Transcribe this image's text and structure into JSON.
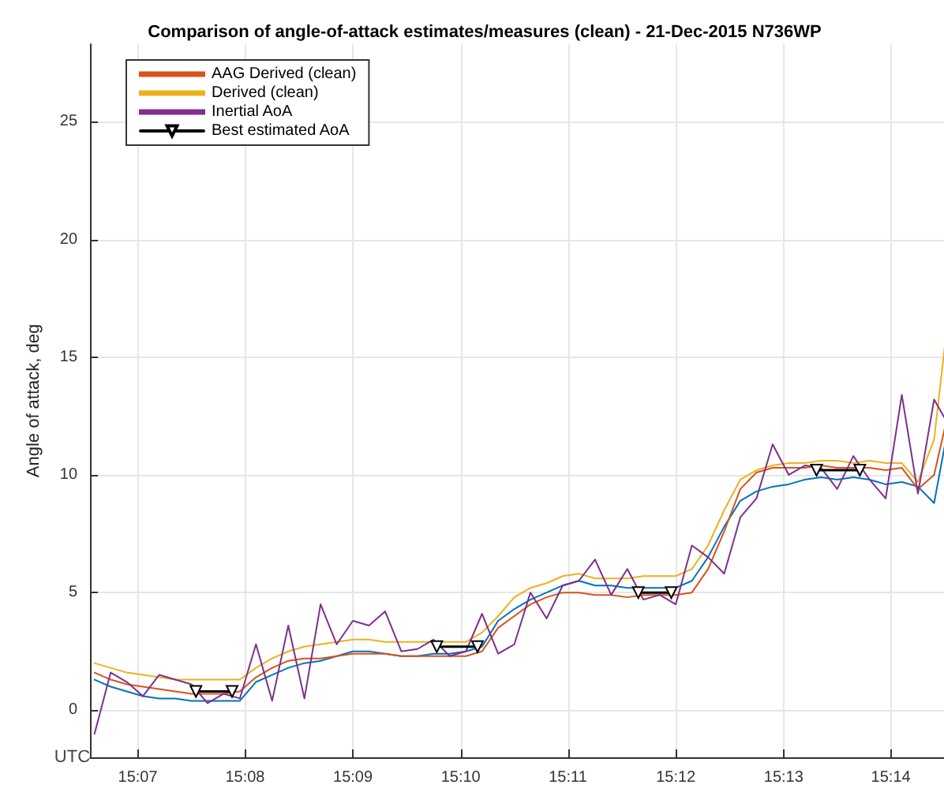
{
  "chart_data": {
    "type": "line",
    "title": "Comparison of angle-of-attack estimates/measures (clean) - 21-Dec-2015 N736WP",
    "xlabel": "UTC",
    "ylabel": "Angle of attack, deg",
    "x": [
      15.11,
      15.1125,
      15.115,
      15.1175,
      15.12,
      15.1225,
      15.125,
      15.1275,
      15.13,
      15.1325,
      15.135,
      15.1375,
      15.14,
      15.1425,
      15.145,
      15.1475,
      15.15,
      15.1525,
      15.155,
      15.1575,
      15.16,
      15.1625,
      15.165,
      15.1675,
      15.17,
      15.1725,
      15.175,
      15.1775,
      15.18,
      15.1825,
      15.185,
      15.1875,
      15.19,
      15.1925,
      15.195,
      15.1975,
      15.2,
      15.2025,
      15.205,
      15.2075,
      15.21,
      15.2125,
      15.215,
      15.2175,
      15.22,
      15.2225,
      15.225,
      15.2275,
      15.23,
      15.2325,
      15.235,
      15.2375,
      15.24,
      15.2425
    ],
    "series": [
      {
        "color": "#0072bd",
        "values": [
          1.3,
          1.0,
          0.8,
          0.6,
          0.5,
          0.5,
          0.4,
          0.4,
          0.4,
          0.4,
          1.2,
          1.5,
          1.8,
          2.0,
          2.1,
          2.3,
          2.5,
          2.5,
          2.4,
          2.3,
          2.3,
          2.4,
          2.4,
          2.5,
          2.7,
          3.8,
          4.3,
          4.7,
          5.0,
          5.3,
          5.5,
          5.3,
          5.3,
          5.2,
          5.2,
          5.2,
          5.2,
          5.5,
          6.5,
          7.8,
          8.9,
          9.3,
          9.5,
          9.6,
          9.8,
          9.9,
          9.8,
          9.9,
          9.8,
          9.6,
          9.7,
          9.5,
          8.8,
          12.5
        ]
      },
      {
        "name": "AAG Derived (clean)",
        "color": "#d95319",
        "values": [
          1.6,
          1.3,
          1.1,
          1.0,
          0.9,
          0.8,
          0.7,
          0.7,
          0.7,
          0.8,
          1.4,
          1.8,
          2.1,
          2.2,
          2.2,
          2.3,
          2.4,
          2.4,
          2.4,
          2.3,
          2.3,
          2.3,
          2.3,
          2.3,
          2.5,
          3.5,
          4.0,
          4.5,
          4.8,
          5.0,
          5.0,
          4.9,
          4.9,
          4.8,
          4.9,
          4.9,
          4.9,
          5.0,
          6.0,
          7.6,
          9.4,
          10.1,
          10.3,
          10.3,
          10.3,
          10.4,
          10.3,
          10.3,
          10.3,
          10.2,
          10.3,
          9.4,
          10.0,
          13.0
        ]
      },
      {
        "name": "Derived (clean)",
        "color": "#edb120",
        "values": [
          2.0,
          1.8,
          1.6,
          1.5,
          1.4,
          1.3,
          1.3,
          1.3,
          1.3,
          1.3,
          1.8,
          2.2,
          2.5,
          2.7,
          2.8,
          2.9,
          3.0,
          3.0,
          2.9,
          2.9,
          2.9,
          2.9,
          2.9,
          2.9,
          3.3,
          4.0,
          4.8,
          5.2,
          5.4,
          5.7,
          5.8,
          5.6,
          5.6,
          5.6,
          5.7,
          5.7,
          5.7,
          6.0,
          7.0,
          8.5,
          9.8,
          10.2,
          10.4,
          10.5,
          10.5,
          10.6,
          10.6,
          10.5,
          10.6,
          10.5,
          10.5,
          9.7,
          11.5,
          17.5
        ]
      },
      {
        "name": "Inertial AoA",
        "color": "#7e2f8e",
        "values": [
          -1.0,
          1.6,
          1.2,
          0.6,
          1.5,
          1.3,
          1.1,
          0.3,
          0.7,
          0.5,
          2.8,
          0.4,
          3.6,
          0.5,
          4.5,
          2.8,
          3.8,
          3.6,
          4.2,
          2.5,
          2.6,
          3.0,
          2.3,
          2.5,
          4.1,
          2.4,
          2.8,
          5.0,
          3.9,
          5.3,
          5.5,
          6.4,
          4.9,
          6.0,
          4.7,
          4.9,
          4.5,
          7.0,
          6.5,
          5.8,
          8.2,
          9.0,
          11.3,
          10.0,
          10.4,
          10.3,
          9.4,
          10.8,
          9.8,
          9.0,
          13.4,
          9.2,
          13.2,
          12.0
        ]
      },
      {
        "name": "Best estimated AoA",
        "color": "#000000",
        "marker": "triangle",
        "x": [
          15.1257,
          15.1313,
          15.15,
          15.163,
          15.1693,
          15.18,
          15.1942,
          15.1993,
          15.21,
          15.2218,
          15.2285
        ],
        "values": [
          0.8,
          0.8,
          null,
          2.7,
          2.7,
          null,
          5.0,
          5.0,
          null,
          10.2,
          10.2
        ]
      }
    ],
    "xlim": [
      15.1093,
      15.243
    ],
    "xticks": [
      {
        "value": 15.1167,
        "label": "15:07"
      },
      {
        "value": 15.1333,
        "label": "15:08"
      },
      {
        "value": 15.15,
        "label": "15:09"
      },
      {
        "value": 15.1667,
        "label": "15:10"
      },
      {
        "value": 15.1833,
        "label": "15:11"
      },
      {
        "value": 15.2,
        "label": "15:12"
      },
      {
        "value": 15.2167,
        "label": "15:13"
      },
      {
        "value": 15.2333,
        "label": "15:14"
      }
    ],
    "ylim": [
      -2,
      28.3
    ],
    "yticks": [
      0,
      5,
      10,
      15,
      20,
      25
    ],
    "grid": true,
    "legend": "top left",
    "marker": "none",
    "line_style": "solid"
  }
}
